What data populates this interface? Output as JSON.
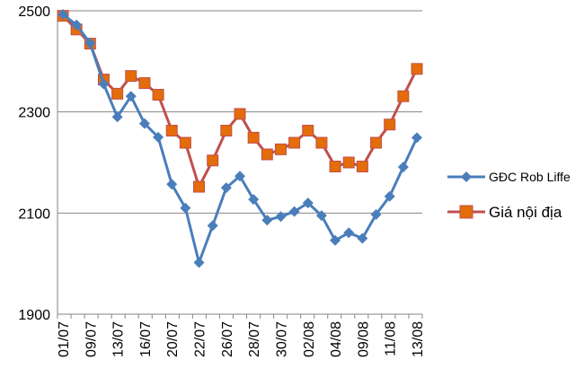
{
  "chart_data": {
    "type": "line",
    "ylim": [
      1900,
      2500
    ],
    "yticks": [
      "1900",
      "2100",
      "2300",
      "2500"
    ],
    "grid": true,
    "legend": "right",
    "x_tick_labels": [
      "01/07",
      "09/07",
      "13/07",
      "16/07",
      "20/07",
      "22/07",
      "26/07",
      "28/07",
      "30/07",
      "02/08",
      "04/08",
      "09/08",
      "11/08",
      "13/08"
    ],
    "series": [
      {
        "name": "GĐC Rob Liffe",
        "color": "#4A7EBB",
        "marker": "diamond",
        "values": [
          2493,
          2472,
          2436,
          2355,
          2290,
          2331,
          2277,
          2250,
          2157,
          2110,
          2002,
          2075,
          2150,
          2173,
          2127,
          2086,
          2093,
          2103,
          2120,
          2095,
          2046,
          2061,
          2050,
          2097,
          2133,
          2191,
          2249
        ]
      },
      {
        "name": "Giá nội địa",
        "color": "#C0504D",
        "marker": "square",
        "values": [
          2490,
          2463,
          2435,
          2364,
          2336,
          2371,
          2357,
          2334,
          2263,
          2239,
          2152,
          2204,
          2263,
          2296,
          2249,
          2216,
          2226,
          2239,
          2263,
          2239,
          2192,
          2200,
          2192,
          2239,
          2275,
          2331,
          2385
        ]
      }
    ]
  }
}
